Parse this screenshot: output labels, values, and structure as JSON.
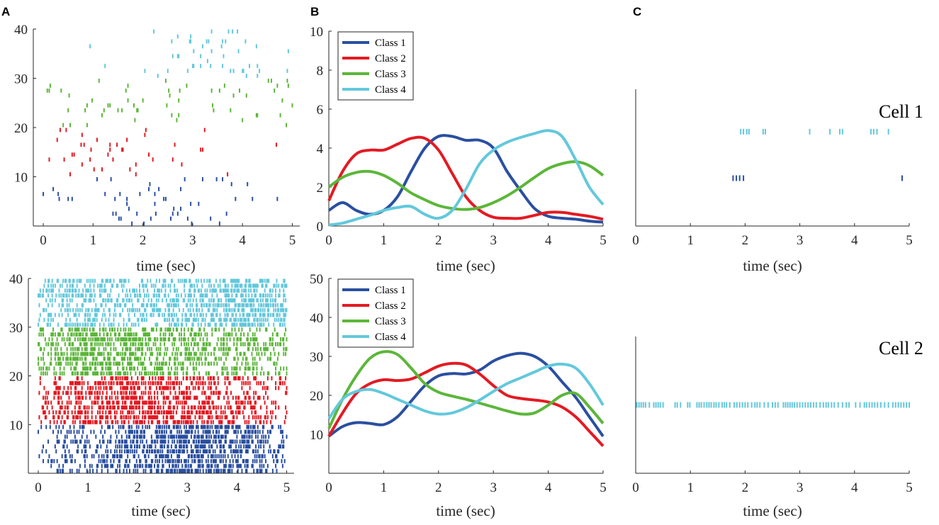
{
  "figure": {
    "panel_letters": [
      "A",
      "B",
      "C"
    ],
    "colors": {
      "Class 1": "#2a4fa0",
      "Class 2": "#e31a22",
      "Class 3": "#5cb63a",
      "Class 4": "#63c8dc",
      "axis": "#262626"
    }
  },
  "chart_data": [
    {
      "id": "A-top",
      "type": "raster",
      "panel": "A",
      "xlabel": "time (sec)",
      "ylabel": "",
      "xlim": [
        -0.2,
        5.15
      ],
      "ylim": [
        0,
        40
      ],
      "xticks": [
        0,
        1,
        2,
        3,
        4,
        5
      ],
      "yticks": [
        10,
        20,
        30,
        40
      ],
      "trials_per_class": 10,
      "density": "sparse",
      "classes": [
        "Class 1",
        "Class 2",
        "Class 3",
        "Class 4"
      ],
      "class_rates": [
        [
          [
            0.0,
            0.6
          ],
          [
            1.0,
            0.5
          ],
          [
            2.2,
            2.2
          ],
          [
            3.0,
            2.0
          ],
          [
            4.0,
            0.2
          ],
          [
            5.0,
            0.1
          ]
        ],
        [
          [
            0.0,
            1.2
          ],
          [
            0.8,
            2.0
          ],
          [
            1.5,
            2.2
          ],
          [
            2.0,
            1.3
          ],
          [
            3.0,
            0.2
          ],
          [
            4.0,
            0.3
          ],
          [
            5.0,
            0.2
          ]
        ],
        [
          [
            0.0,
            1.2
          ],
          [
            0.5,
            1.8
          ],
          [
            1.5,
            0.6
          ],
          [
            2.5,
            0.4
          ],
          [
            3.5,
            0.8
          ],
          [
            4.5,
            1.8
          ],
          [
            5.0,
            1.6
          ]
        ],
        [
          [
            0.0,
            0.0
          ],
          [
            1.0,
            0.4
          ],
          [
            2.0,
            0.3
          ],
          [
            3.0,
            2.0
          ],
          [
            4.0,
            2.5
          ],
          [
            5.0,
            0.6
          ]
        ]
      ]
    },
    {
      "id": "A-bottom",
      "type": "raster",
      "panel": "A",
      "xlabel": "time (sec)",
      "ylabel": "",
      "xlim": [
        -0.2,
        5.15
      ],
      "ylim": [
        0,
        40
      ],
      "xticks": [
        0,
        1,
        2,
        3,
        4,
        5
      ],
      "yticks": [
        10,
        20,
        30,
        40
      ],
      "trials_per_class": 10,
      "density": "dense",
      "classes": [
        "Class 1",
        "Class 2",
        "Class 3",
        "Class 4"
      ],
      "class_rates": [
        [
          [
            0.0,
            10
          ],
          [
            1.0,
            13
          ],
          [
            2.0,
            24
          ],
          [
            3.0,
            28
          ],
          [
            3.5,
            31
          ],
          [
            4.0,
            26
          ],
          [
            5.0,
            10
          ]
        ],
        [
          [
            0.0,
            10
          ],
          [
            1.0,
            23
          ],
          [
            2.0,
            27
          ],
          [
            3.0,
            24
          ],
          [
            4.0,
            19
          ],
          [
            5.0,
            7
          ]
        ],
        [
          [
            0.0,
            12
          ],
          [
            1.0,
            31
          ],
          [
            2.0,
            22
          ],
          [
            3.0,
            18
          ],
          [
            4.0,
            16
          ],
          [
            5.0,
            13
          ]
        ],
        [
          [
            0.0,
            14
          ],
          [
            0.6,
            21
          ],
          [
            2.0,
            16
          ],
          [
            3.0,
            21
          ],
          [
            4.2,
            28
          ],
          [
            5.0,
            17
          ]
        ]
      ]
    },
    {
      "id": "B-top",
      "type": "line",
      "panel": "B",
      "xlabel": "time (sec)",
      "ylabel": "",
      "xlim": [
        0,
        5
      ],
      "ylim": [
        0,
        10
      ],
      "xticks": [
        0,
        1,
        2,
        3,
        4,
        5
      ],
      "yticks": [
        0,
        2,
        4,
        6,
        8,
        10
      ],
      "legend_position": "top-left",
      "series": [
        {
          "name": "Class 1",
          "x": [
            0,
            0.25,
            0.5,
            0.75,
            1.0,
            1.25,
            1.5,
            1.75,
            2.0,
            2.25,
            2.5,
            2.75,
            3.0,
            3.25,
            3.5,
            3.75,
            4.0,
            4.25,
            4.5,
            4.75,
            5.0
          ],
          "y": [
            0.8,
            1.2,
            0.8,
            0.6,
            0.8,
            1.5,
            2.8,
            4.0,
            4.6,
            4.6,
            4.4,
            4.4,
            4.0,
            2.8,
            1.8,
            0.9,
            0.5,
            0.4,
            0.35,
            0.25,
            0.2
          ]
        },
        {
          "name": "Class 2",
          "x": [
            0,
            0.25,
            0.5,
            0.75,
            1.0,
            1.25,
            1.5,
            1.75,
            2.0,
            2.25,
            2.5,
            2.75,
            3.0,
            3.25,
            3.5,
            3.75,
            4.0,
            4.25,
            4.5,
            4.75,
            5.0
          ],
          "y": [
            1.3,
            2.8,
            3.7,
            3.9,
            3.9,
            4.2,
            4.5,
            4.5,
            3.9,
            2.7,
            1.5,
            0.8,
            0.45,
            0.4,
            0.4,
            0.55,
            0.7,
            0.7,
            0.6,
            0.5,
            0.35
          ]
        },
        {
          "name": "Class 3",
          "x": [
            0,
            0.25,
            0.5,
            0.75,
            1.0,
            1.25,
            1.5,
            1.75,
            2.0,
            2.25,
            2.5,
            2.75,
            3.0,
            3.25,
            3.5,
            3.75,
            4.0,
            4.25,
            4.5,
            4.75,
            5.0
          ],
          "y": [
            2.0,
            2.5,
            2.75,
            2.8,
            2.6,
            2.2,
            1.7,
            1.35,
            1.05,
            0.9,
            0.85,
            0.95,
            1.2,
            1.55,
            2.0,
            2.5,
            2.95,
            3.2,
            3.3,
            3.1,
            2.6
          ]
        },
        {
          "name": "Class 4",
          "x": [
            0,
            0.25,
            0.5,
            0.75,
            1.0,
            1.25,
            1.5,
            1.75,
            2.0,
            2.25,
            2.5,
            2.75,
            3.0,
            3.25,
            3.5,
            3.75,
            4.0,
            4.25,
            4.5,
            4.75,
            5.0
          ],
          "y": [
            0.05,
            0.15,
            0.35,
            0.55,
            0.8,
            0.95,
            1.0,
            0.6,
            0.4,
            0.8,
            1.9,
            3.2,
            3.9,
            4.3,
            4.55,
            4.75,
            4.9,
            4.6,
            3.4,
            2.0,
            1.1
          ]
        }
      ]
    },
    {
      "id": "B-bottom",
      "type": "line",
      "panel": "B",
      "xlabel": "time (sec)",
      "ylabel": "",
      "xlim": [
        0,
        5
      ],
      "ylim": [
        0,
        50
      ],
      "xticks": [
        0,
        1,
        2,
        3,
        4,
        5
      ],
      "yticks": [
        10,
        20,
        30,
        40,
        50
      ],
      "legend_position": "top-left",
      "series": [
        {
          "name": "Class 1",
          "x": [
            0,
            0.25,
            0.5,
            0.75,
            1.0,
            1.25,
            1.5,
            1.75,
            2.0,
            2.25,
            2.5,
            2.75,
            3.0,
            3.25,
            3.5,
            3.75,
            4.0,
            4.25,
            4.5,
            4.75,
            5.0
          ],
          "y": [
            9.5,
            12.0,
            13.0,
            12.8,
            12.5,
            14.5,
            18.5,
            22.5,
            25.0,
            25.6,
            25.5,
            26.5,
            28.8,
            30.2,
            30.8,
            30.0,
            27.5,
            23.5,
            19.5,
            14.5,
            9.5
          ]
        },
        {
          "name": "Class 2",
          "x": [
            0,
            0.25,
            0.5,
            0.75,
            1.0,
            1.25,
            1.5,
            1.75,
            2.0,
            2.25,
            2.5,
            2.75,
            3.0,
            3.25,
            3.5,
            3.75,
            4.0,
            4.25,
            4.5,
            4.75,
            5.0
          ],
          "y": [
            9.5,
            15.5,
            20.5,
            23.0,
            24.0,
            23.8,
            24.2,
            25.8,
            27.5,
            28.2,
            27.8,
            25.5,
            22.5,
            20.0,
            19.2,
            18.8,
            18.3,
            17.0,
            14.5,
            10.8,
            7.0
          ]
        },
        {
          "name": "Class 3",
          "x": [
            0,
            0.25,
            0.5,
            0.75,
            1.0,
            1.25,
            1.5,
            1.75,
            2.0,
            2.25,
            2.5,
            2.75,
            3.0,
            3.25,
            3.5,
            3.75,
            4.0,
            4.25,
            4.5,
            4.75,
            5.0
          ],
          "y": [
            11.5,
            19.0,
            25.0,
            29.5,
            31.2,
            30.5,
            27.0,
            23.0,
            20.8,
            19.8,
            19.0,
            18.0,
            17.0,
            16.0,
            15.2,
            15.5,
            17.5,
            20.0,
            20.5,
            17.0,
            12.8
          ]
        },
        {
          "name": "Class 4",
          "x": [
            0,
            0.25,
            0.5,
            0.75,
            1.0,
            1.25,
            1.5,
            1.75,
            2.0,
            2.25,
            2.5,
            2.75,
            3.0,
            3.25,
            3.5,
            3.75,
            4.0,
            4.25,
            4.5,
            4.75,
            5.0
          ],
          "y": [
            14.0,
            19.0,
            21.0,
            21.5,
            20.5,
            19.0,
            17.5,
            16.0,
            15.2,
            15.5,
            16.8,
            18.8,
            21.0,
            23.0,
            24.5,
            26.0,
            27.5,
            28.0,
            27.0,
            23.0,
            17.5
          ]
        }
      ]
    },
    {
      "id": "C-top",
      "type": "raster",
      "panel": "C",
      "xlabel": "time (sec)",
      "ylabel": "",
      "xlim": [
        0,
        5
      ],
      "ylim": [
        0,
        10
      ],
      "xticks": [
        0,
        1,
        2,
        3,
        4,
        5
      ],
      "annotation": "Cell 1",
      "rows": [
        {
          "class": "Class 1",
          "y": 3.5,
          "spikes": [
            1.78,
            1.84,
            1.9,
            1.97,
            4.87
          ]
        },
        {
          "class": "Class 4",
          "y": 6.9,
          "spikes": [
            1.92,
            1.97,
            2.03,
            2.07,
            2.33,
            2.37,
            3.18,
            3.55,
            3.73,
            3.78,
            4.3,
            4.35,
            4.41,
            4.62
          ]
        }
      ]
    },
    {
      "id": "C-bottom",
      "type": "raster",
      "panel": "C",
      "xlabel": "time (sec)",
      "ylabel": "",
      "xlim": [
        0,
        5
      ],
      "ylim": [
        0,
        10
      ],
      "xticks": [
        0,
        1,
        2,
        3,
        4,
        5
      ],
      "annotation": "Cell 2",
      "rows": [
        {
          "class": "Class 4",
          "y": 5.0,
          "spikes": [
            0.02,
            0.06,
            0.1,
            0.14,
            0.18,
            0.25,
            0.33,
            0.37,
            0.41,
            0.45,
            0.5,
            0.72,
            0.76,
            0.82,
            0.95,
            0.99,
            1.12,
            1.16,
            1.2,
            1.25,
            1.3,
            1.34,
            1.38,
            1.43,
            1.47,
            1.52,
            1.58,
            1.62,
            1.66,
            1.72,
            1.8,
            1.85,
            1.9,
            1.95,
            2.0,
            2.05,
            2.12,
            2.18,
            2.22,
            2.27,
            2.35,
            2.42,
            2.5,
            2.55,
            2.6,
            2.7,
            2.74,
            2.78,
            2.82,
            2.86,
            2.9,
            2.95,
            3.0,
            3.05,
            3.1,
            3.15,
            3.2,
            3.25,
            3.3,
            3.37,
            3.43,
            3.48,
            3.52,
            3.58,
            3.63,
            3.7,
            3.78,
            3.85,
            3.9,
            4.02,
            4.1,
            4.18,
            4.22,
            4.27,
            4.32,
            4.37,
            4.42,
            4.48,
            4.55,
            4.62,
            4.7,
            4.75,
            4.8,
            4.85,
            4.9,
            4.95,
            5.0
          ]
        }
      ]
    }
  ]
}
